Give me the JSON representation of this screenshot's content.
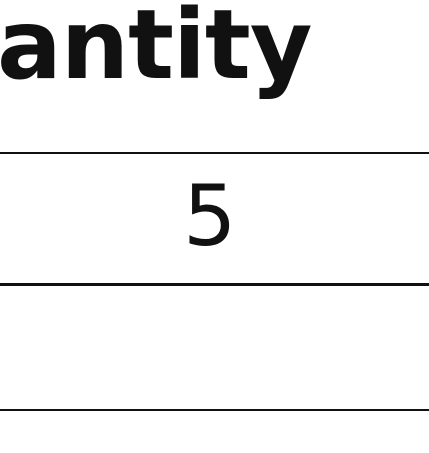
{
  "table": {
    "header": "antity",
    "rows": [
      {
        "quantity": "5"
      },
      {
        "quantity": ""
      }
    ]
  }
}
